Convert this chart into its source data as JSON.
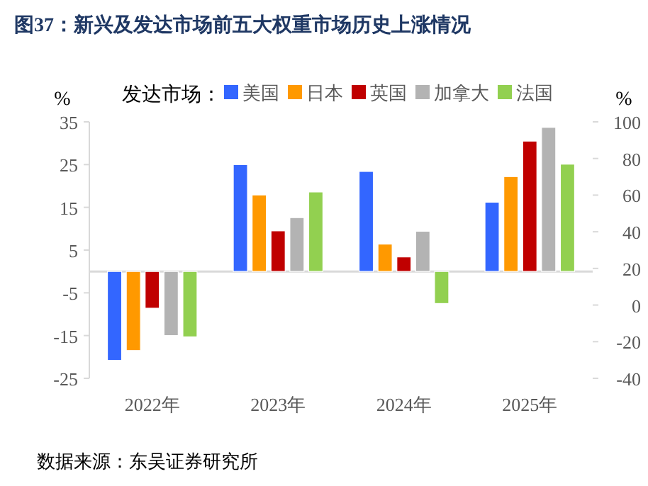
{
  "chart_data": {
    "type": "bar",
    "title": "图37：新兴及发达市场前五大权重市场历史上涨情况",
    "categories": [
      "2022年",
      "2023年",
      "2024年",
      "2025年"
    ],
    "series": [
      {
        "name": "美国",
        "color": "#3366ff",
        "values": [
          -20.8,
          25.0,
          23.4,
          16.2
        ]
      },
      {
        "name": "日本",
        "color": "#ff9900",
        "values": [
          -18.5,
          17.9,
          6.4,
          22.2
        ]
      },
      {
        "name": "英国",
        "color": "#c00000",
        "values": [
          -8.6,
          9.5,
          3.4,
          30.5
        ]
      },
      {
        "name": "加拿大",
        "color": "#b3b3b3",
        "values": [
          -15.0,
          12.6,
          9.4,
          33.7
        ]
      },
      {
        "name": "法国",
        "color": "#92d050",
        "values": [
          -15.3,
          18.6,
          -7.5,
          25.1
        ]
      }
    ],
    "legend_title": "发达市场：",
    "legend": "top",
    "ylabel": "%",
    "y2label": "%",
    "ylim": [
      -25,
      35
    ],
    "yticks": [
      -25,
      -15,
      -5,
      5,
      15,
      25,
      35
    ],
    "y2lim": [
      -40,
      100
    ],
    "y2ticks": [
      -40,
      -20,
      0,
      20,
      40,
      60,
      80,
      100
    ],
    "grid": false,
    "annotations": [
      "数据来源：东吴证券研究所"
    ]
  }
}
